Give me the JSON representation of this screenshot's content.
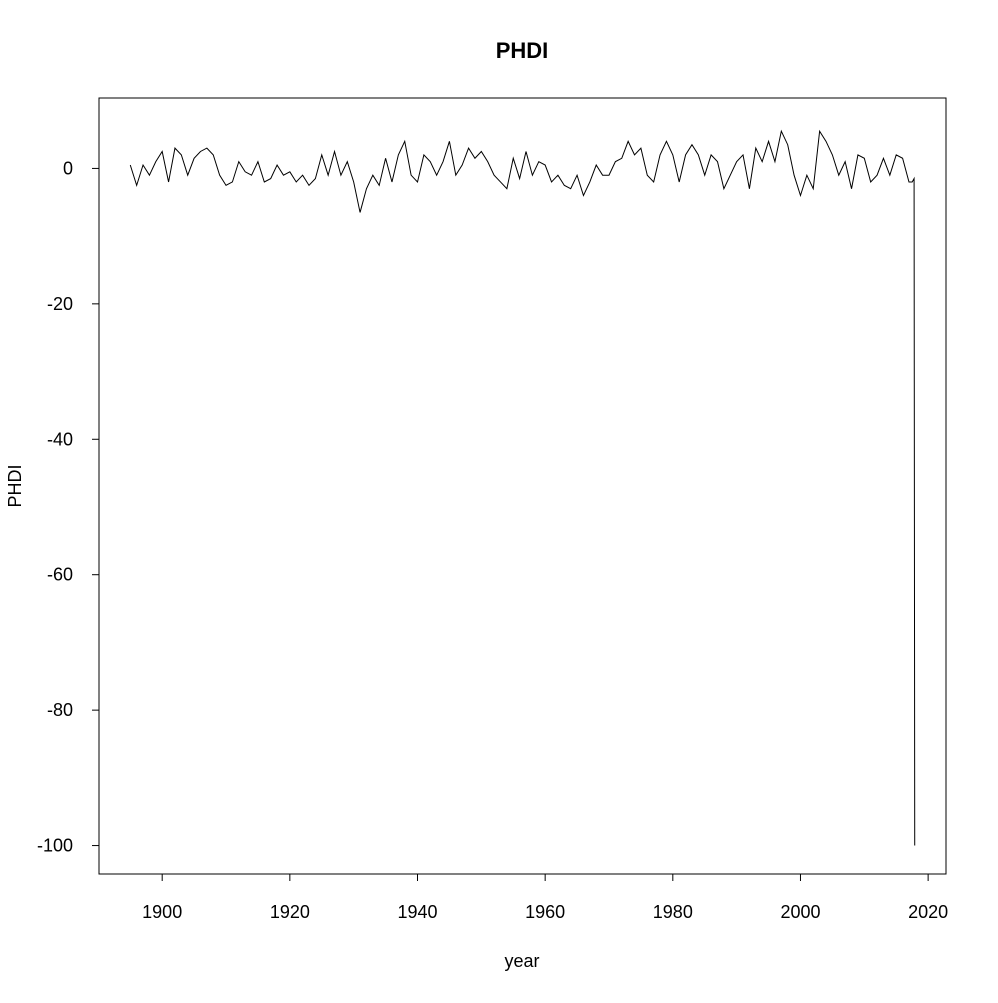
{
  "chart_data": {
    "type": "line",
    "title": "PHDI",
    "x_label": "year",
    "y_label": "PHDI",
    "x": [
      1895,
      1896,
      1897,
      1898,
      1899,
      1900,
      1901,
      1902,
      1903,
      1904,
      1905,
      1906,
      1907,
      1908,
      1909,
      1910,
      1911,
      1912,
      1913,
      1914,
      1915,
      1916,
      1917,
      1918,
      1919,
      1920,
      1921,
      1922,
      1923,
      1924,
      1925,
      1926,
      1927,
      1928,
      1929,
      1930,
      1931,
      1932,
      1933,
      1934,
      1935,
      1936,
      1937,
      1938,
      1939,
      1940,
      1941,
      1942,
      1943,
      1944,
      1945,
      1946,
      1947,
      1948,
      1949,
      1950,
      1951,
      1952,
      1953,
      1954,
      1955,
      1956,
      1957,
      1958,
      1959,
      1960,
      1961,
      1962,
      1963,
      1964,
      1965,
      1966,
      1967,
      1968,
      1969,
      1970,
      1971,
      1972,
      1973,
      1974,
      1975,
      1976,
      1977,
      1978,
      1979,
      1980,
      1981,
      1982,
      1983,
      1984,
      1985,
      1986,
      1987,
      1988,
      1989,
      1990,
      1991,
      1992,
      1993,
      1994,
      1995,
      1996,
      1997,
      1998,
      1999,
      2000,
      2001,
      2002,
      2003,
      2004,
      2005,
      2006,
      2007,
      2008,
      2009,
      2010,
      2011,
      2012,
      2013,
      2014,
      2015,
      2016,
      2017,
      2017.5,
      2017.8,
      2017.9
    ],
    "series": [
      {
        "name": "PHDI",
        "color": "#000000",
        "values": [
          0.5,
          -2.5,
          0.5,
          -1,
          1,
          2.5,
          -2,
          3,
          2,
          -1,
          1.5,
          2.5,
          3,
          2,
          -1,
          -2.5,
          -2,
          1,
          -0.5,
          -1,
          1,
          -2,
          -1.5,
          0.5,
          -1,
          -0.5,
          -2,
          -1,
          -2.5,
          -1.5,
          2,
          -1,
          2.5,
          -1,
          1,
          -2,
          -6.5,
          -3,
          -1,
          -2.5,
          1.5,
          -2,
          2,
          4,
          -1,
          -2,
          2,
          1,
          -1,
          1,
          4,
          -1,
          0.5,
          3,
          1.5,
          2.5,
          1,
          -1,
          -2,
          -3,
          1.5,
          -1.5,
          2.5,
          -1,
          1,
          0.5,
          -2,
          -1,
          -2.5,
          -3,
          -1,
          -4,
          -2,
          0.5,
          -1,
          -1,
          1,
          1.5,
          4,
          2,
          3,
          -1,
          -2,
          2,
          4,
          2,
          -2,
          2,
          3.5,
          2,
          -1,
          2,
          1,
          -3,
          -1,
          1,
          2,
          -3,
          3,
          1,
          4,
          1,
          5.5,
          3.5,
          -1,
          -4,
          -1,
          -3,
          5.5,
          4,
          2,
          -1,
          1,
          -3,
          2,
          1.5,
          -2,
          -1,
          1.5,
          -1,
          2,
          1.5,
          -2,
          -2,
          -1.5,
          -99.99
        ]
      }
    ],
    "xlim": [
      1890.1,
      2022.8
    ],
    "ylim": [
      -104.2,
      10.4
    ],
    "xticks": [
      1900,
      1920,
      1940,
      1960,
      1980,
      2000,
      2020
    ],
    "yticks": [
      0,
      -20,
      -40,
      -60,
      -80,
      -100
    ]
  }
}
